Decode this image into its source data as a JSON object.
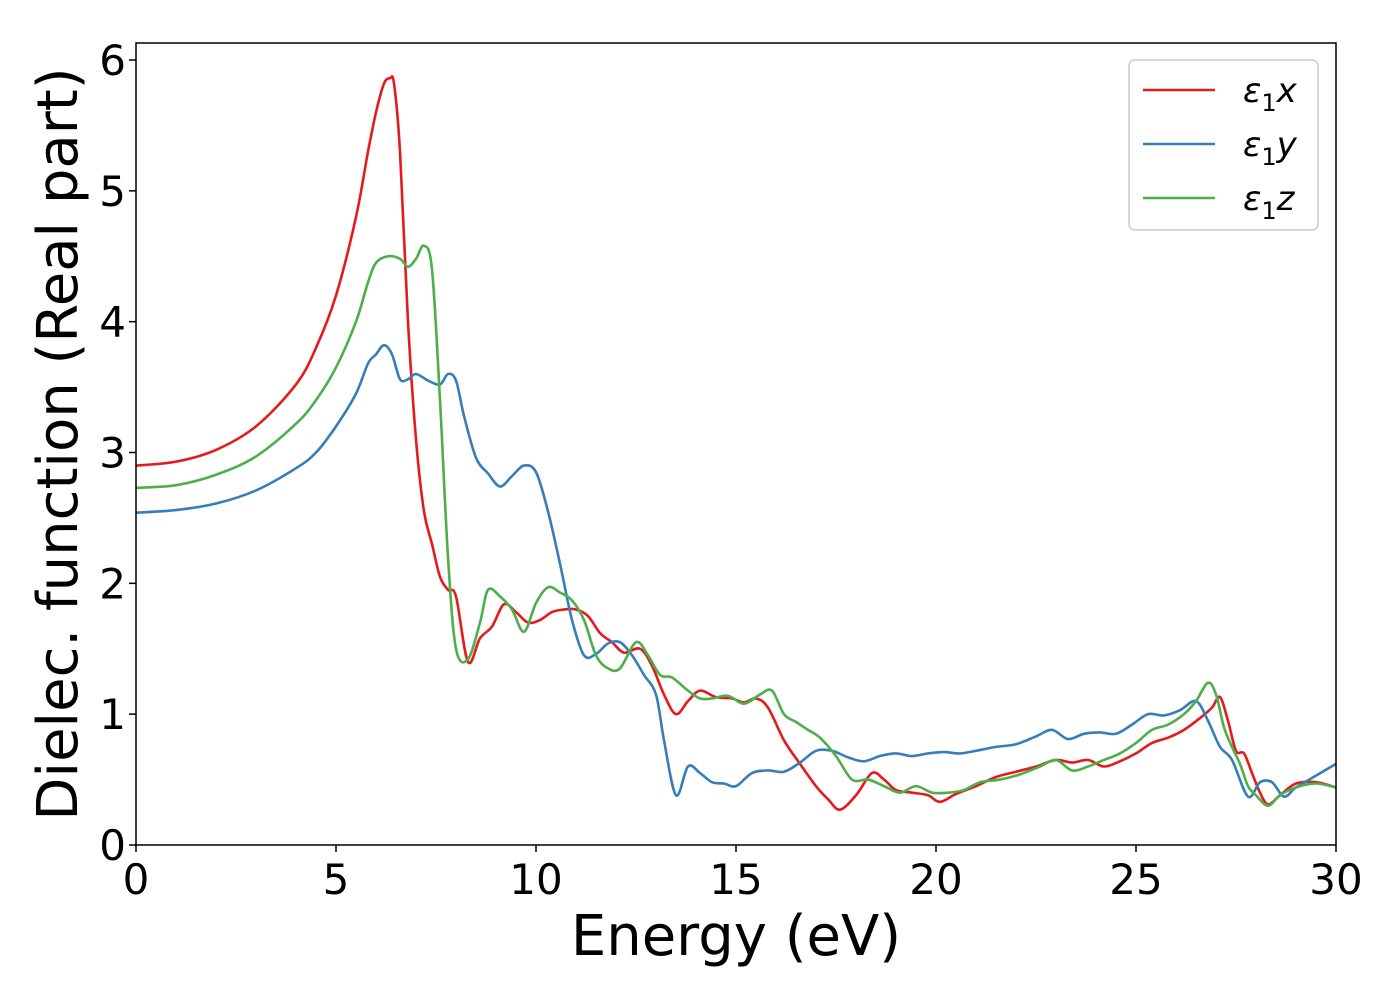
{
  "chart_data": {
    "type": "line",
    "xlabel": "Energy (eV)",
    "ylabel": "Dielec. function (Real part)",
    "xlim": [
      0,
      30
    ],
    "ylim": [
      0,
      6.13
    ],
    "xticks": [
      0,
      5,
      10,
      15,
      20,
      25,
      30
    ],
    "yticks": [
      0,
      1,
      2,
      3,
      4,
      5,
      6
    ],
    "grid": false,
    "legend_position": "top-right",
    "series": [
      {
        "name": "ε1x",
        "legend": {
          "base": "ε",
          "sub": "1",
          "suffix": "x"
        },
        "color": "#e41a1c",
        "x": [
          0,
          1,
          2,
          3,
          4,
          4.5,
          5,
          5.5,
          5.8,
          6.0,
          6.2,
          6.35,
          6.45,
          6.6,
          6.8,
          7.0,
          7.2,
          7.4,
          7.6,
          7.8,
          8.0,
          8.3,
          8.6,
          8.9,
          9.2,
          9.5,
          9.8,
          10.1,
          10.4,
          10.7,
          11.0,
          11.3,
          11.6,
          11.9,
          12.2,
          12.6,
          12.9,
          13.2,
          13.5,
          13.8,
          14.1,
          14.5,
          14.9,
          15.2,
          15.5,
          15.8,
          16.2,
          16.6,
          17.0,
          17.3,
          17.6,
          18.0,
          18.4,
          18.7,
          19.0,
          19.4,
          19.8,
          20.1,
          20.5,
          21.0,
          21.5,
          22.0,
          22.5,
          23.0,
          23.4,
          23.8,
          24.2,
          24.6,
          25.0,
          25.4,
          25.8,
          26.2,
          26.6,
          26.9,
          27.1,
          27.3,
          27.5,
          27.7,
          27.9,
          28.1,
          28.3,
          28.6,
          29.0,
          29.5,
          30
        ],
        "values": [
          2.9,
          2.93,
          3.02,
          3.2,
          3.52,
          3.8,
          4.2,
          4.8,
          5.3,
          5.6,
          5.82,
          5.86,
          5.82,
          5.3,
          4.0,
          3.1,
          2.55,
          2.3,
          2.05,
          1.95,
          1.9,
          1.4,
          1.58,
          1.67,
          1.84,
          1.78,
          1.7,
          1.72,
          1.78,
          1.8,
          1.8,
          1.75,
          1.62,
          1.55,
          1.47,
          1.5,
          1.37,
          1.15,
          1.0,
          1.1,
          1.18,
          1.13,
          1.12,
          1.09,
          1.12,
          1.05,
          0.8,
          0.62,
          0.45,
          0.35,
          0.27,
          0.38,
          0.55,
          0.5,
          0.42,
          0.4,
          0.38,
          0.33,
          0.39,
          0.45,
          0.52,
          0.56,
          0.6,
          0.65,
          0.63,
          0.65,
          0.6,
          0.64,
          0.7,
          0.78,
          0.82,
          0.88,
          0.97,
          1.05,
          1.13,
          0.95,
          0.72,
          0.7,
          0.55,
          0.4,
          0.31,
          0.38,
          0.47,
          0.48,
          0.44
        ]
      },
      {
        "name": "ε1y",
        "legend": {
          "base": "ε",
          "sub": "1",
          "suffix": "y"
        },
        "color": "#377eb8",
        "x": [
          0,
          1,
          2,
          3,
          4,
          4.5,
          5,
          5.5,
          5.8,
          6.0,
          6.2,
          6.4,
          6.6,
          6.8,
          7.0,
          7.3,
          7.6,
          7.8,
          8.0,
          8.2,
          8.5,
          8.8,
          9.1,
          9.4,
          9.7,
          10.0,
          10.3,
          10.6,
          10.9,
          11.2,
          11.5,
          11.8,
          12.1,
          12.4,
          12.7,
          13.0,
          13.2,
          13.5,
          13.8,
          14.1,
          14.4,
          14.7,
          15.0,
          15.4,
          15.8,
          16.2,
          16.6,
          17.0,
          17.4,
          17.8,
          18.2,
          18.6,
          19.0,
          19.4,
          19.8,
          20.2,
          20.6,
          21.0,
          21.5,
          22.0,
          22.5,
          22.9,
          23.3,
          23.7,
          24.1,
          24.5,
          24.9,
          25.3,
          25.7,
          26.1,
          26.5,
          26.8,
          27.1,
          27.4,
          27.8,
          28.1,
          28.4,
          28.7,
          29.0,
          29.5,
          30
        ],
        "values": [
          2.54,
          2.56,
          2.61,
          2.71,
          2.88,
          3.0,
          3.2,
          3.45,
          3.68,
          3.75,
          3.82,
          3.75,
          3.56,
          3.56,
          3.6,
          3.55,
          3.52,
          3.6,
          3.55,
          3.28,
          2.96,
          2.84,
          2.74,
          2.82,
          2.9,
          2.85,
          2.55,
          2.15,
          1.72,
          1.45,
          1.46,
          1.54,
          1.55,
          1.45,
          1.3,
          1.15,
          0.8,
          0.38,
          0.6,
          0.55,
          0.48,
          0.47,
          0.45,
          0.55,
          0.57,
          0.56,
          0.63,
          0.72,
          0.72,
          0.67,
          0.64,
          0.68,
          0.7,
          0.68,
          0.7,
          0.71,
          0.7,
          0.72,
          0.75,
          0.77,
          0.83,
          0.88,
          0.81,
          0.85,
          0.86,
          0.85,
          0.92,
          1.0,
          0.99,
          1.03,
          1.1,
          0.95,
          0.75,
          0.65,
          0.37,
          0.48,
          0.48,
          0.37,
          0.44,
          0.53,
          0.62
        ]
      },
      {
        "name": "ε1z",
        "legend": {
          "base": "ε",
          "sub": "1",
          "suffix": "z"
        },
        "color": "#4daf4a",
        "x": [
          0,
          1,
          2,
          3,
          4,
          4.5,
          5,
          5.5,
          5.8,
          6.0,
          6.3,
          6.6,
          6.8,
          7.0,
          7.2,
          7.4,
          7.6,
          7.8,
          8.0,
          8.3,
          8.6,
          8.8,
          9.1,
          9.4,
          9.7,
          10.0,
          10.3,
          10.6,
          10.9,
          11.2,
          11.5,
          11.8,
          12.1,
          12.5,
          12.8,
          13.1,
          13.4,
          13.8,
          14.1,
          14.4,
          14.8,
          15.2,
          15.6,
          15.9,
          16.2,
          16.5,
          16.8,
          17.1,
          17.5,
          17.9,
          18.3,
          18.7,
          19.1,
          19.5,
          19.9,
          20.3,
          20.7,
          21.1,
          21.6,
          22.1,
          22.6,
          23.0,
          23.4,
          23.8,
          24.2,
          24.6,
          25.0,
          25.4,
          25.8,
          26.2,
          26.5,
          26.8,
          27.0,
          27.2,
          27.4,
          27.6,
          27.8,
          28.0,
          28.3,
          28.6,
          29.0,
          29.5,
          30
        ],
        "values": [
          2.73,
          2.75,
          2.83,
          2.97,
          3.22,
          3.4,
          3.65,
          4.0,
          4.3,
          4.45,
          4.5,
          4.48,
          4.42,
          4.48,
          4.58,
          4.4,
          3.4,
          2.2,
          1.5,
          1.42,
          1.7,
          1.95,
          1.9,
          1.8,
          1.63,
          1.85,
          1.97,
          1.93,
          1.87,
          1.72,
          1.45,
          1.35,
          1.35,
          1.55,
          1.45,
          1.3,
          1.28,
          1.18,
          1.12,
          1.12,
          1.14,
          1.08,
          1.15,
          1.18,
          1.0,
          0.94,
          0.88,
          0.82,
          0.68,
          0.5,
          0.5,
          0.45,
          0.4,
          0.45,
          0.4,
          0.4,
          0.42,
          0.48,
          0.5,
          0.54,
          0.6,
          0.65,
          0.57,
          0.6,
          0.65,
          0.7,
          0.78,
          0.88,
          0.92,
          1.0,
          1.1,
          1.24,
          1.15,
          0.9,
          0.75,
          0.62,
          0.45,
          0.38,
          0.3,
          0.38,
          0.44,
          0.47,
          0.44
        ]
      }
    ]
  }
}
